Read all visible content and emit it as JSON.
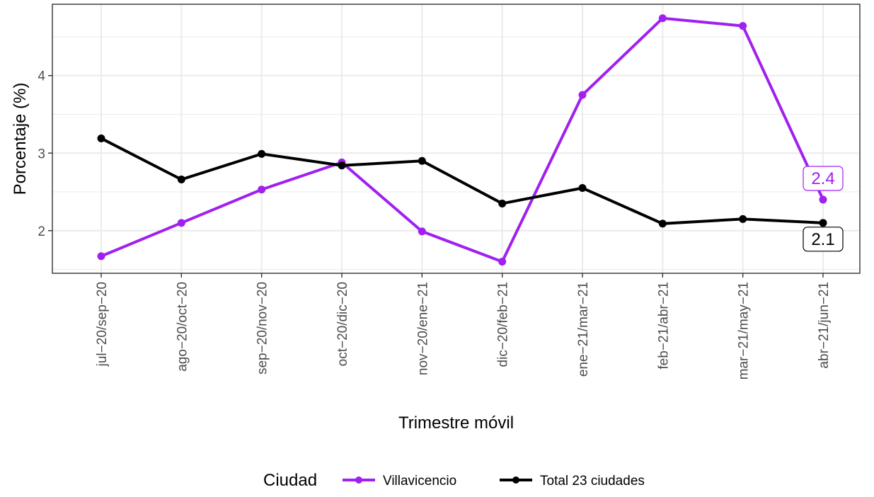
{
  "chart_data": {
    "type": "line",
    "xlabel": "Trimestre móvil",
    "ylabel": "Porcentaje (%)",
    "categories": [
      "jul−20/sep−20",
      "ago−20/oct−20",
      "sep−20/nov−20",
      "oct−20/dic−20",
      "nov−20/ene−21",
      "dic−20/feb−21",
      "ene−21/mar−21",
      "feb−21/abr−21",
      "mar−21/may−21",
      "abr−21/jun−21"
    ],
    "ylim": [
      1.45,
      4.92
    ],
    "yticks": [
      2,
      3,
      4
    ],
    "grid": true,
    "series": [
      {
        "name": "Villavicencio",
        "color": "#a020f0",
        "values": [
          1.67,
          2.1,
          2.53,
          2.88,
          1.99,
          1.6,
          3.75,
          4.74,
          4.64,
          2.4
        ],
        "end_label": "2.4"
      },
      {
        "name": "Total 23 ciudades",
        "color": "#000000",
        "values": [
          3.19,
          2.66,
          2.99,
          2.84,
          2.9,
          2.35,
          2.55,
          2.09,
          2.15,
          2.1
        ],
        "end_label": "2.1"
      }
    ],
    "legend": {
      "title": "Ciudad",
      "position": "bottom"
    }
  }
}
